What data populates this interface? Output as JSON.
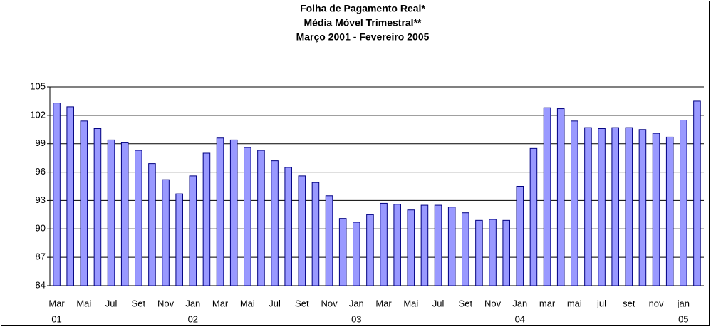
{
  "chart_data": {
    "type": "bar",
    "title": [
      "Folha de Pagamento Real*",
      "Média Móvel Trimestral**",
      "Março 2001 - Fevereiro 2005"
    ],
    "categories": [
      "Mar",
      null,
      "Mai",
      null,
      "Jul",
      null,
      "Set",
      null,
      "Nov",
      null,
      "Jan",
      null,
      "Mar",
      null,
      "Mai",
      null,
      "Jul",
      null,
      "Set",
      null,
      "Nov",
      null,
      "Jan",
      null,
      "Mar",
      null,
      "Mai",
      null,
      "Jul",
      null,
      "Set",
      null,
      "Nov",
      null,
      "Jan",
      null,
      "mar",
      null,
      "mai",
      null,
      "jul",
      null,
      "set",
      null,
      "nov",
      null,
      "jan",
      null
    ],
    "year_labels": [
      "01",
      null,
      null,
      null,
      null,
      null,
      null,
      null,
      null,
      null,
      "02",
      null,
      null,
      null,
      null,
      null,
      null,
      null,
      null,
      null,
      null,
      null,
      "03",
      null,
      null,
      null,
      null,
      null,
      null,
      null,
      null,
      null,
      null,
      null,
      "04",
      null,
      null,
      null,
      null,
      null,
      null,
      null,
      null,
      null,
      null,
      null,
      "05",
      null
    ],
    "values": [
      103.3,
      102.9,
      101.4,
      100.6,
      99.4,
      99.1,
      98.3,
      96.9,
      95.2,
      93.7,
      95.6,
      98.0,
      99.6,
      99.4,
      98.6,
      98.3,
      97.2,
      96.5,
      95.6,
      94.9,
      93.5,
      91.1,
      90.7,
      91.5,
      92.7,
      92.6,
      92.0,
      92.5,
      92.5,
      92.3,
      91.7,
      90.9,
      91.0,
      90.9,
      94.5,
      98.5,
      102.8,
      102.7,
      101.4,
      100.7,
      100.6,
      100.7,
      100.7,
      100.5,
      100.1,
      99.7,
      101.5,
      103.5
    ],
    "color": "#9999ff",
    "ylim": [
      84,
      105
    ],
    "yticks": [
      84,
      87,
      90,
      93,
      96,
      99,
      102,
      105
    ],
    "grid": true
  }
}
